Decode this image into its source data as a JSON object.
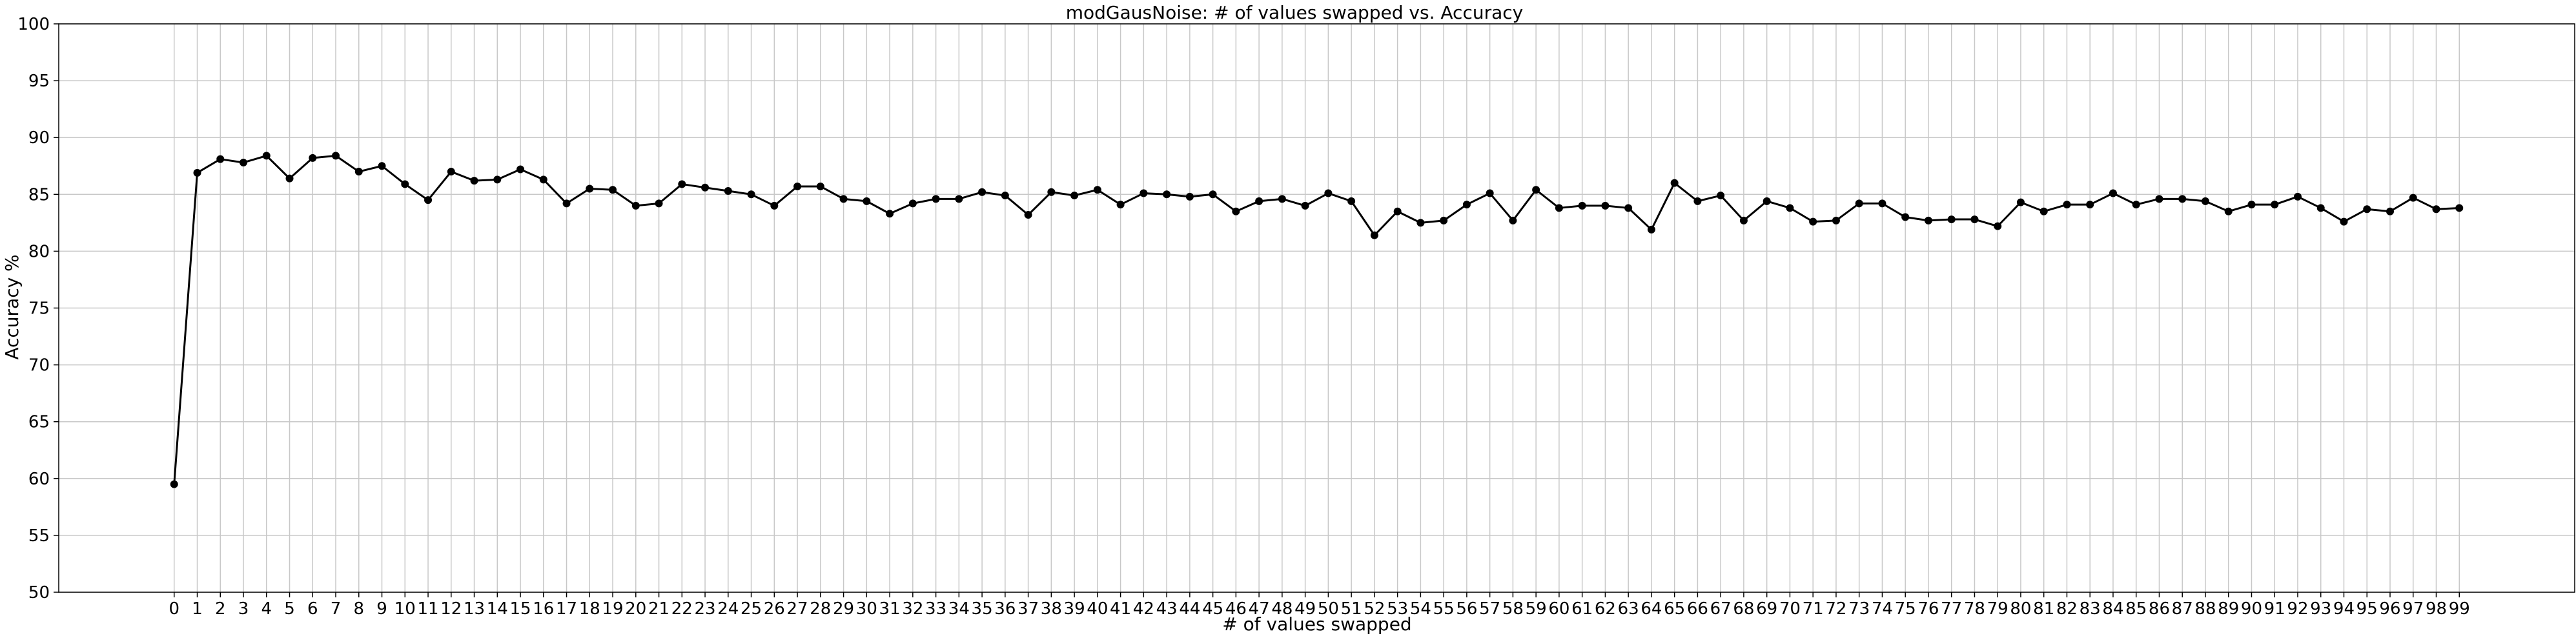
{
  "chart_data": {
    "type": "line",
    "title": "modGausNoise: # of values swapped vs. Accuracy",
    "xlabel": "# of values swapped",
    "ylabel": "Accuracy %",
    "xlim": [
      -5,
      104
    ],
    "ylim": [
      50,
      100
    ],
    "yticks": [
      50,
      55,
      60,
      65,
      70,
      75,
      80,
      85,
      90,
      95,
      100
    ],
    "grid": true,
    "line_color": "#000000",
    "series": [
      {
        "x": [
          0,
          1,
          2,
          3,
          4,
          5,
          6,
          7,
          8,
          9,
          10,
          11,
          12,
          13,
          14,
          15,
          16,
          17,
          18,
          19,
          20,
          21,
          22,
          23,
          24,
          25,
          26,
          27,
          28,
          29,
          30,
          31,
          32,
          33,
          34,
          35,
          36,
          37,
          38,
          39,
          40,
          41,
          42,
          43,
          44,
          45,
          46,
          47,
          48,
          49,
          50,
          51,
          52,
          53,
          54,
          55,
          56,
          57,
          58,
          59,
          60,
          61,
          62,
          63,
          64,
          65,
          66,
          67,
          68,
          69,
          70,
          71,
          72,
          73,
          74,
          75,
          76,
          77,
          78,
          79,
          80,
          81,
          82,
          83,
          84,
          85,
          86,
          87,
          88,
          89,
          90,
          91,
          92,
          93,
          94,
          95,
          96,
          97,
          98,
          99
        ],
        "values": [
          59.5,
          86.9,
          88.1,
          87.8,
          88.4,
          86.4,
          88.2,
          88.4,
          87.0,
          87.5,
          85.9,
          84.5,
          87.0,
          86.2,
          86.3,
          87.2,
          86.3,
          84.2,
          85.5,
          85.4,
          84.0,
          84.2,
          85.9,
          85.6,
          85.3,
          85.0,
          84.0,
          85.7,
          85.7,
          84.6,
          84.4,
          83.3,
          84.2,
          84.6,
          84.6,
          85.2,
          84.9,
          83.2,
          85.2,
          84.9,
          85.4,
          84.1,
          85.1,
          85.0,
          84.8,
          85.0,
          83.5,
          84.4,
          84.6,
          84.0,
          85.1,
          84.4,
          81.4,
          83.5,
          82.5,
          82.7,
          84.1,
          85.1,
          82.7,
          85.4,
          83.8,
          84.0,
          84.0,
          83.8,
          81.9,
          86.0,
          84.4,
          84.9,
          82.7,
          84.4,
          83.8,
          82.6,
          82.7,
          84.2,
          84.2,
          83.0,
          82.7,
          82.8,
          82.8,
          82.2,
          84.3,
          83.5,
          84.1,
          84.1,
          85.1,
          84.1,
          84.6,
          84.6,
          84.4,
          83.5,
          84.1,
          84.1,
          84.8,
          83.8,
          82.6,
          83.7,
          83.5,
          84.7,
          83.7,
          83.8
        ]
      }
    ]
  }
}
